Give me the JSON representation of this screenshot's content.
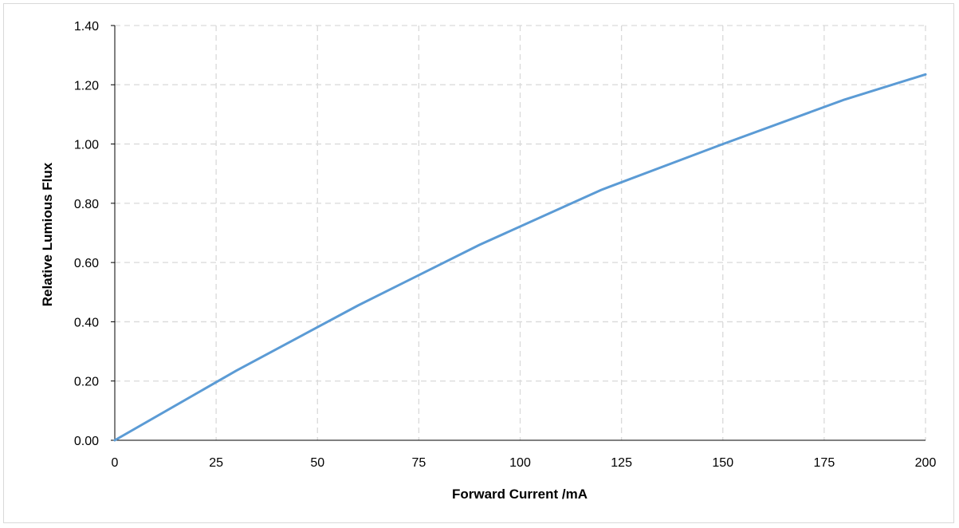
{
  "chart_data": {
    "type": "line",
    "title": "",
    "xlabel": "Forward Current /mA",
    "ylabel": "Relative Lumious Flux",
    "xlim": [
      0,
      200
    ],
    "ylim": [
      0,
      1.4
    ],
    "x_ticks": [
      "0",
      "25",
      "50",
      "75",
      "100",
      "125",
      "150",
      "175",
      "200"
    ],
    "y_ticks": [
      "0.00",
      "0.20",
      "0.40",
      "0.60",
      "0.80",
      "1.00",
      "1.20",
      "1.40"
    ],
    "grid": true,
    "legend": "none",
    "series": [
      {
        "color": "#5b9bd5",
        "x": [
          0,
          30,
          60,
          90,
          120,
          150,
          180,
          200
        ],
        "y": [
          0.0,
          0.235,
          0.455,
          0.66,
          0.845,
          1.0,
          1.15,
          1.235
        ]
      }
    ]
  },
  "colors": {
    "grid": "#d9d9d9",
    "axis": "#000000",
    "line": "#5b9bd5"
  }
}
